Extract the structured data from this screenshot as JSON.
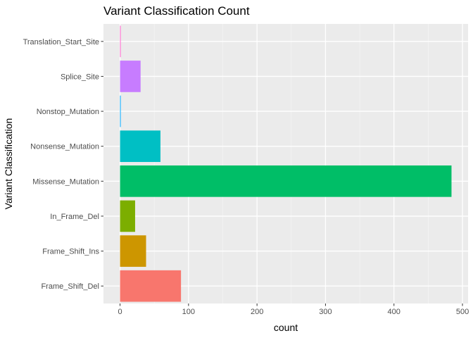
{
  "chart_data": {
    "type": "bar",
    "orientation": "horizontal",
    "title": "Variant Classification Count",
    "xlabel": "count",
    "ylabel": "Variant Classification",
    "xlim": [
      0,
      500
    ],
    "x_ticks": [
      0,
      100,
      200,
      300,
      400,
      500
    ],
    "grid": true,
    "legend": "none",
    "panel_background": "#EBEBEB",
    "categories": [
      "Frame_Shift_Del",
      "Frame_Shift_Ins",
      "In_Frame_Del",
      "Missense_Mutation",
      "Nonsense_Mutation",
      "Nonstop_Mutation",
      "Splice_Site",
      "Translation_Start_Site"
    ],
    "values": [
      89,
      38,
      22,
      484,
      59,
      1,
      30,
      1
    ],
    "colors": [
      "#F8766D",
      "#CD9600",
      "#7CAE00",
      "#00BE67",
      "#00BFC4",
      "#00A9FF",
      "#C77CFF",
      "#FF61CC"
    ]
  }
}
